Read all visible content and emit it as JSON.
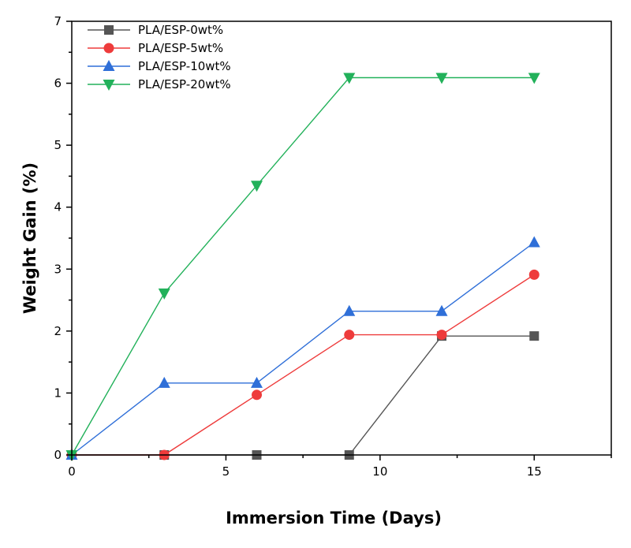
{
  "chart_data": {
    "type": "line",
    "title": "",
    "xlabel": "Immersion Time (Days)",
    "ylabel": "Weight Gain (%)",
    "xlim": [
      0,
      17.5
    ],
    "ylim": [
      0,
      7
    ],
    "xticks": [
      0,
      5,
      10,
      15
    ],
    "yticks": [
      0,
      1,
      2,
      3,
      4,
      5,
      6,
      7
    ],
    "grid": false,
    "legend_position": "top-left",
    "series": [
      {
        "name": "PLA/ESP-0wt%",
        "marker": "square",
        "color": "#555555",
        "x": [
          0,
          3,
          6,
          9,
          12,
          15
        ],
        "y": [
          0,
          0,
          0,
          0,
          1.92,
          1.92
        ]
      },
      {
        "name": "PLA/ESP-5wt%",
        "marker": "circle",
        "color": "#ee3b3b",
        "x": [
          0,
          3,
          6,
          9,
          12,
          15
        ],
        "y": [
          0,
          0,
          0.97,
          1.94,
          1.94,
          2.91
        ]
      },
      {
        "name": "PLA/ESP-10wt%",
        "marker": "triangle-up",
        "color": "#2f6fd8",
        "x": [
          0,
          3,
          6,
          9,
          12,
          15
        ],
        "y": [
          0,
          1.16,
          1.16,
          2.32,
          2.32,
          3.43
        ]
      },
      {
        "name": "PLA/ESP-20wt%",
        "marker": "triangle-down",
        "color": "#22b15a",
        "x": [
          0,
          3,
          6,
          9,
          12,
          15
        ],
        "y": [
          0,
          2.61,
          4.35,
          6.09,
          6.09,
          6.09
        ]
      }
    ]
  }
}
